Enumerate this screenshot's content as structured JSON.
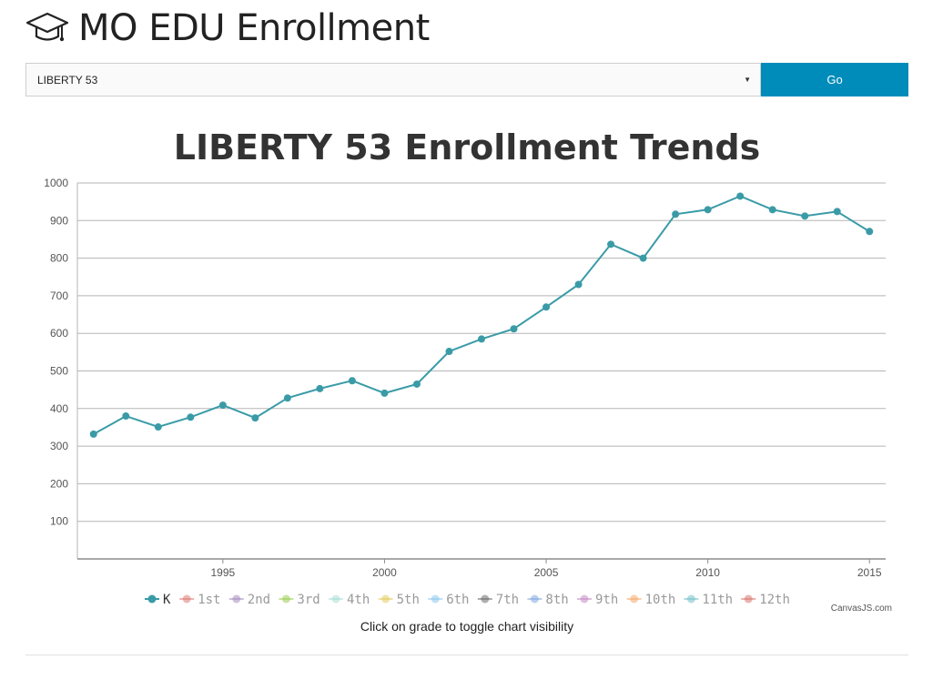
{
  "header": {
    "title": "MO EDU Enrollment",
    "icon": "graduation-cap-icon"
  },
  "controls": {
    "district_selected": "LIBERTY 53",
    "go_label": "Go",
    "go_color": "#008cba"
  },
  "chart_data": {
    "type": "line",
    "title": "LIBERTY 53 Enrollment Trends",
    "xlabel": "",
    "ylabel": "",
    "xlim": [
      1990.5,
      2015.5
    ],
    "ylim": [
      0,
      1000
    ],
    "x_ticks": [
      1995,
      2000,
      2005,
      2010,
      2015
    ],
    "y_ticks": [
      100,
      200,
      300,
      400,
      500,
      600,
      700,
      800,
      900,
      1000
    ],
    "grid": true,
    "series": [
      {
        "name": "K",
        "color": "#3a9ba7",
        "visible": true,
        "x": [
          1991,
          1992,
          1993,
          1994,
          1995,
          1996,
          1997,
          1998,
          1999,
          2000,
          2001,
          2002,
          2003,
          2004,
          2005,
          2006,
          2007,
          2008,
          2009,
          2010,
          2011,
          2012,
          2013,
          2014,
          2015
        ],
        "values": [
          332,
          380,
          351,
          377,
          409,
          375,
          428,
          453,
          474,
          441,
          465,
          552,
          585,
          612,
          670,
          730,
          837,
          800,
          917,
          929,
          965,
          929,
          912,
          924,
          871
        ]
      }
    ],
    "legend": {
      "placement": "bottom",
      "items": [
        {
          "label": "K",
          "color": "#3a9ba7",
          "active": true
        },
        {
          "label": "1st",
          "color": "#e07a74",
          "active": false
        },
        {
          "label": "2nd",
          "color": "#a58cbf",
          "active": false
        },
        {
          "label": "3rd",
          "color": "#9acd52",
          "active": false
        },
        {
          "label": "4th",
          "color": "#a9dcdb",
          "active": false
        },
        {
          "label": "5th",
          "color": "#e3cc5c",
          "active": false
        },
        {
          "label": "6th",
          "color": "#8cc7ef",
          "active": false
        },
        {
          "label": "7th",
          "color": "#6b6b6b",
          "active": false
        },
        {
          "label": "8th",
          "color": "#82a8e0",
          "active": false
        },
        {
          "label": "9th",
          "color": "#c58ac7",
          "active": false
        },
        {
          "label": "10th",
          "color": "#f5a96a",
          "active": false
        },
        {
          "label": "11th",
          "color": "#72bfc9",
          "active": false
        },
        {
          "label": "12th",
          "color": "#d9746c",
          "active": false
        }
      ]
    },
    "credit": "CanvasJS.com"
  },
  "hint": "Click on grade to toggle chart visibility"
}
